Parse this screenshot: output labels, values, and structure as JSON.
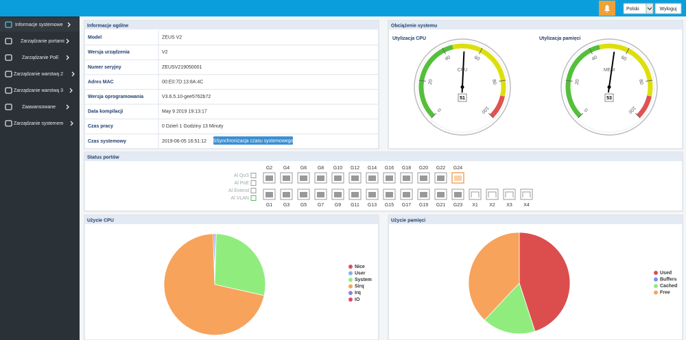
{
  "topbar": {
    "language": "Polski",
    "logout": "Wyloguj"
  },
  "sidebar": {
    "items": [
      "Informacje systemowe",
      "Zarządzanie portami",
      "Zarządzanie PoE",
      "Zarządzanie warstwą 2",
      "Zarządzanie warstwą 3",
      "Zaawansowane",
      "Zarządzanie systemem"
    ]
  },
  "general_info": {
    "title": "Informacje ogólne",
    "rows": [
      [
        "Model",
        "ZEUS V2"
      ],
      [
        "Wersja urządzenia",
        "V2"
      ],
      [
        "Numer seryjny",
        "ZEUSV219050001"
      ],
      [
        "Adres MAC",
        "00:E0:7D:13:8A:4C"
      ],
      [
        "Wersja oprogramowania",
        "V3.6.5.10-gee5762b72"
      ],
      [
        "Data kompilacji",
        "May 9 2019 19:13:17"
      ],
      [
        "Czas pracy",
        "0 Dzień 1 Godziny 13 Minuty"
      ],
      [
        "Czas systemowy",
        "2019-06-05 16:51:12"
      ]
    ],
    "sync_button": "SSynchronizacja czasu systemowego"
  },
  "system_load": {
    "title": "Obciążenie systemu",
    "gauges": [
      {
        "type": "gauge",
        "title": "Utylizacja CPU",
        "label": "CPU",
        "value": 51,
        "range": [
          0,
          100
        ],
        "ticks": [
          0,
          20,
          40,
          60,
          80,
          100
        ],
        "bands": [
          {
            "from": 0,
            "to": 45,
            "color": "#55bf3b"
          },
          {
            "from": 45,
            "to": 88,
            "color": "#dddf0d"
          },
          {
            "from": 88,
            "to": 100,
            "color": "#df5353"
          }
        ]
      },
      {
        "type": "gauge",
        "title": "Utylizacja pamięci",
        "label": "MEM",
        "value": 53,
        "range": [
          0,
          100
        ],
        "ticks": [
          0,
          20,
          40,
          60,
          80,
          100
        ],
        "bands": [
          {
            "from": 0,
            "to": 45,
            "color": "#55bf3b"
          },
          {
            "from": 45,
            "to": 88,
            "color": "#dddf0d"
          },
          {
            "from": 88,
            "to": 100,
            "color": "#df5353"
          }
        ]
      }
    ]
  },
  "port_status": {
    "title": "Status portów",
    "legend": [
      "Al QoS",
      "Al PoE",
      "Al Extend",
      "Al VLAN"
    ],
    "top_ports": [
      "G2",
      "G4",
      "G6",
      "G8",
      "G10",
      "G12",
      "G14",
      "G16",
      "G18",
      "G20",
      "G22",
      "G24"
    ],
    "bottom_ports": [
      "G1",
      "G3",
      "G5",
      "G7",
      "G9",
      "G11",
      "G13",
      "G15",
      "G17",
      "G19",
      "G21",
      "G23",
      "X1",
      "X2",
      "X3",
      "X4"
    ]
  },
  "cpu_usage": {
    "title": "Użycie CPU",
    "chart_data": {
      "type": "pie",
      "series": [
        {
          "name": "Nice",
          "color": "#d9534f",
          "values": [
            0
          ]
        },
        {
          "name": "User",
          "color": "#7cb5ec",
          "values": [
            0.5
          ]
        },
        {
          "name": "System",
          "color": "#90ed7d",
          "values": [
            28
          ]
        },
        {
          "name": "Sirq",
          "color": "#f7a35c",
          "values": [
            71
          ]
        },
        {
          "name": "Irq",
          "color": "#8085e9",
          "values": [
            0.5
          ]
        },
        {
          "name": "IO",
          "color": "#e4466f",
          "values": [
            0
          ]
        }
      ]
    }
  },
  "memory_usage": {
    "title": "Użycie pamięci",
    "chart_data": {
      "type": "pie",
      "series": [
        {
          "name": "Used",
          "color": "#dc4e4e",
          "values": [
            45
          ]
        },
        {
          "name": "Buffers",
          "color": "#7c8fe9",
          "values": [
            0
          ]
        },
        {
          "name": "Cached",
          "color": "#90ed7d",
          "values": [
            17
          ]
        },
        {
          "name": "Free",
          "color": "#f7a35c",
          "values": [
            38
          ]
        }
      ]
    }
  }
}
